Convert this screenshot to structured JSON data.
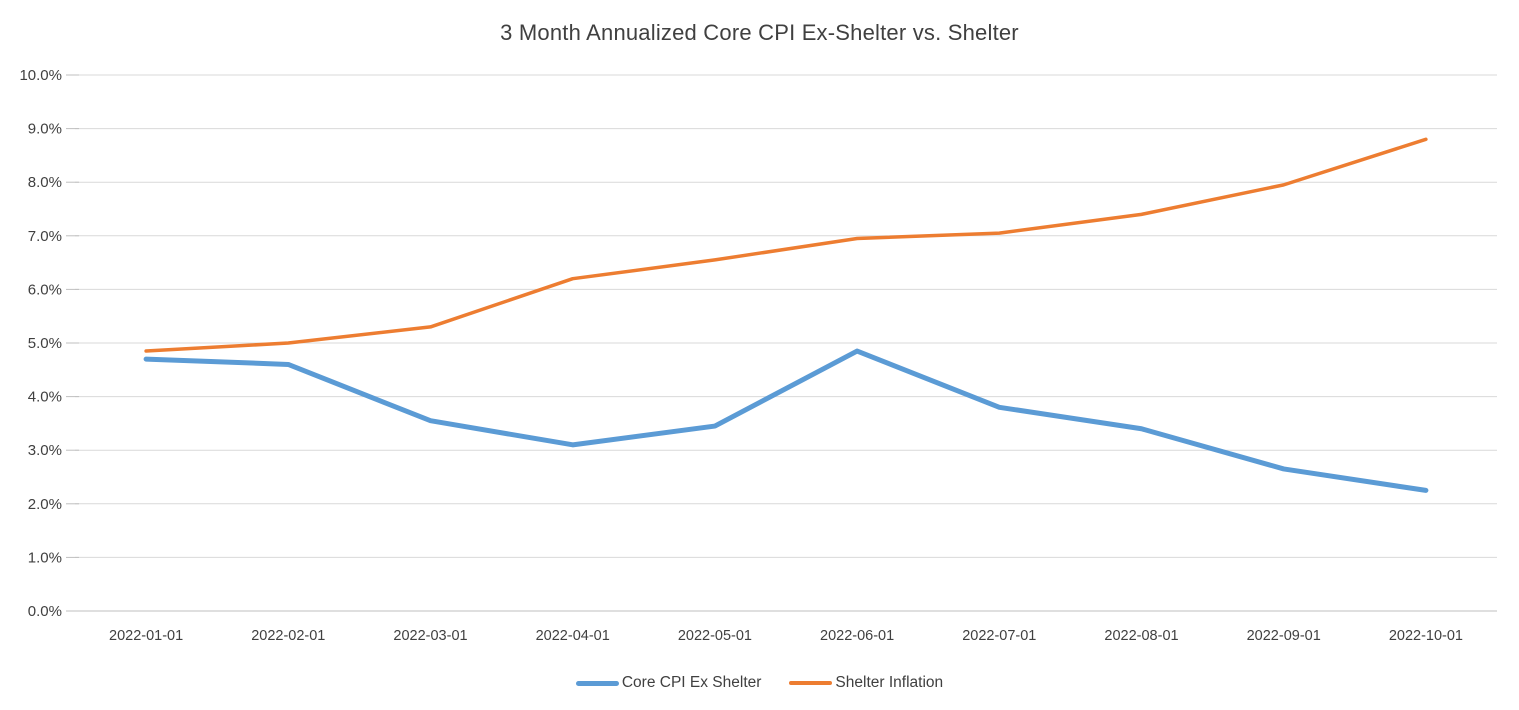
{
  "chart_data": {
    "type": "line",
    "title": "3 Month Annualized Core CPI Ex-Shelter vs. Shelter",
    "categories": [
      "2022-01-01",
      "2022-02-01",
      "2022-03-01",
      "2022-04-01",
      "2022-05-01",
      "2022-06-01",
      "2022-07-01",
      "2022-08-01",
      "2022-09-01",
      "2022-10-01"
    ],
    "series": [
      {
        "name": "Core CPI Ex Shelter",
        "color": "#5B9BD5",
        "stroke_width": 5,
        "values": [
          4.7,
          4.6,
          3.55,
          3.1,
          3.45,
          4.85,
          3.8,
          3.4,
          2.65,
          2.25
        ]
      },
      {
        "name": "Shelter Inflation",
        "color": "#ED7D31",
        "stroke_width": 3.5,
        "values": [
          4.85,
          5.0,
          5.3,
          6.2,
          6.55,
          6.95,
          7.05,
          7.4,
          7.95,
          8.8
        ]
      }
    ],
    "ylim": [
      0,
      10
    ],
    "ytick_step": 1,
    "ytick_labels": [
      "0.0%",
      "1.0%",
      "2.0%",
      "3.0%",
      "4.0%",
      "5.0%",
      "6.0%",
      "7.0%",
      "8.0%",
      "9.0%",
      "10.0%"
    ],
    "xlabel": "",
    "ylabel": "",
    "grid": "horizontal",
    "gridline_color": "#D9D9D9",
    "axis_line_color": "#BFBFBF",
    "text_color": "#404040",
    "legend_position": "bottom"
  }
}
